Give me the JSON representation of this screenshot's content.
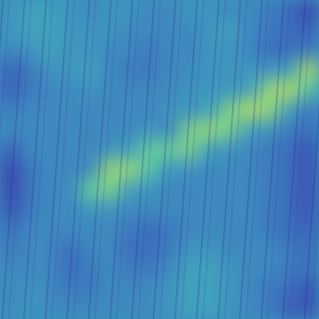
{
  "chart_data": {
    "type": "heatmap",
    "tick_labels": false,
    "zlim": [
      0,
      1
    ],
    "cells": [
      [
        0.45,
        0.5,
        0.5,
        0.45,
        0.4,
        0.45,
        0.45,
        0.4,
        0.4,
        0.45,
        0.45,
        0.4,
        0.4,
        0.35,
        0.3,
        0.15
      ],
      [
        0.45,
        0.5,
        0.5,
        0.45,
        0.45,
        0.45,
        0.4,
        0.4,
        0.4,
        0.4,
        0.45,
        0.5,
        0.4,
        0.35,
        0.3,
        0.25
      ],
      [
        0.4,
        0.45,
        0.5,
        0.45,
        0.45,
        0.4,
        0.4,
        0.35,
        0.4,
        0.4,
        0.45,
        0.45,
        0.4,
        0.3,
        0.3,
        0.35
      ],
      [
        0.25,
        0.35,
        0.45,
        0.45,
        0.5,
        0.4,
        0.35,
        0.35,
        0.4,
        0.4,
        0.45,
        0.45,
        0.45,
        0.45,
        0.5,
        0.9
      ],
      [
        0.25,
        0.35,
        0.4,
        0.4,
        0.45,
        0.4,
        0.4,
        0.4,
        0.4,
        0.45,
        0.45,
        0.45,
        0.5,
        0.85,
        0.9,
        0.7
      ],
      [
        0.35,
        0.4,
        0.4,
        0.4,
        0.4,
        0.4,
        0.4,
        0.4,
        0.45,
        0.45,
        0.5,
        0.8,
        0.9,
        0.85,
        0.5,
        0.35
      ],
      [
        0.4,
        0.4,
        0.4,
        0.4,
        0.4,
        0.4,
        0.4,
        0.45,
        0.4,
        0.8,
        0.85,
        0.8,
        0.5,
        0.45,
        0.35,
        0.3
      ],
      [
        0.25,
        0.4,
        0.4,
        0.4,
        0.4,
        0.45,
        0.5,
        0.75,
        0.75,
        0.8,
        0.5,
        0.45,
        0.4,
        0.35,
        0.3,
        0.2
      ],
      [
        0.15,
        0.35,
        0.4,
        0.4,
        0.4,
        0.85,
        0.85,
        0.7,
        0.45,
        0.45,
        0.4,
        0.4,
        0.4,
        0.35,
        0.3,
        0.2
      ],
      [
        0.15,
        0.35,
        0.4,
        0.4,
        0.75,
        0.8,
        0.5,
        0.45,
        0.4,
        0.4,
        0.4,
        0.4,
        0.4,
        0.35,
        0.3,
        0.2
      ],
      [
        0.2,
        0.35,
        0.4,
        0.4,
        0.45,
        0.45,
        0.4,
        0.4,
        0.4,
        0.4,
        0.4,
        0.4,
        0.4,
        0.35,
        0.3,
        0.2
      ],
      [
        0.3,
        0.4,
        0.4,
        0.4,
        0.4,
        0.4,
        0.35,
        0.3,
        0.35,
        0.4,
        0.4,
        0.4,
        0.4,
        0.35,
        0.3,
        0.25
      ],
      [
        0.35,
        0.4,
        0.4,
        0.3,
        0.4,
        0.4,
        0.3,
        0.3,
        0.35,
        0.45,
        0.45,
        0.4,
        0.4,
        0.4,
        0.35,
        0.3
      ],
      [
        0.4,
        0.4,
        0.4,
        0.3,
        0.35,
        0.4,
        0.35,
        0.35,
        0.4,
        0.5,
        0.5,
        0.45,
        0.4,
        0.4,
        0.35,
        0.3
      ],
      [
        0.4,
        0.45,
        0.4,
        0.35,
        0.35,
        0.4,
        0.4,
        0.4,
        0.45,
        0.5,
        0.5,
        0.45,
        0.4,
        0.35,
        0.3,
        0.2
      ],
      [
        0.4,
        0.45,
        0.4,
        0.4,
        0.4,
        0.4,
        0.4,
        0.4,
        0.45,
        0.5,
        0.5,
        0.45,
        0.4,
        0.35,
        0.25,
        0.2
      ]
    ]
  }
}
